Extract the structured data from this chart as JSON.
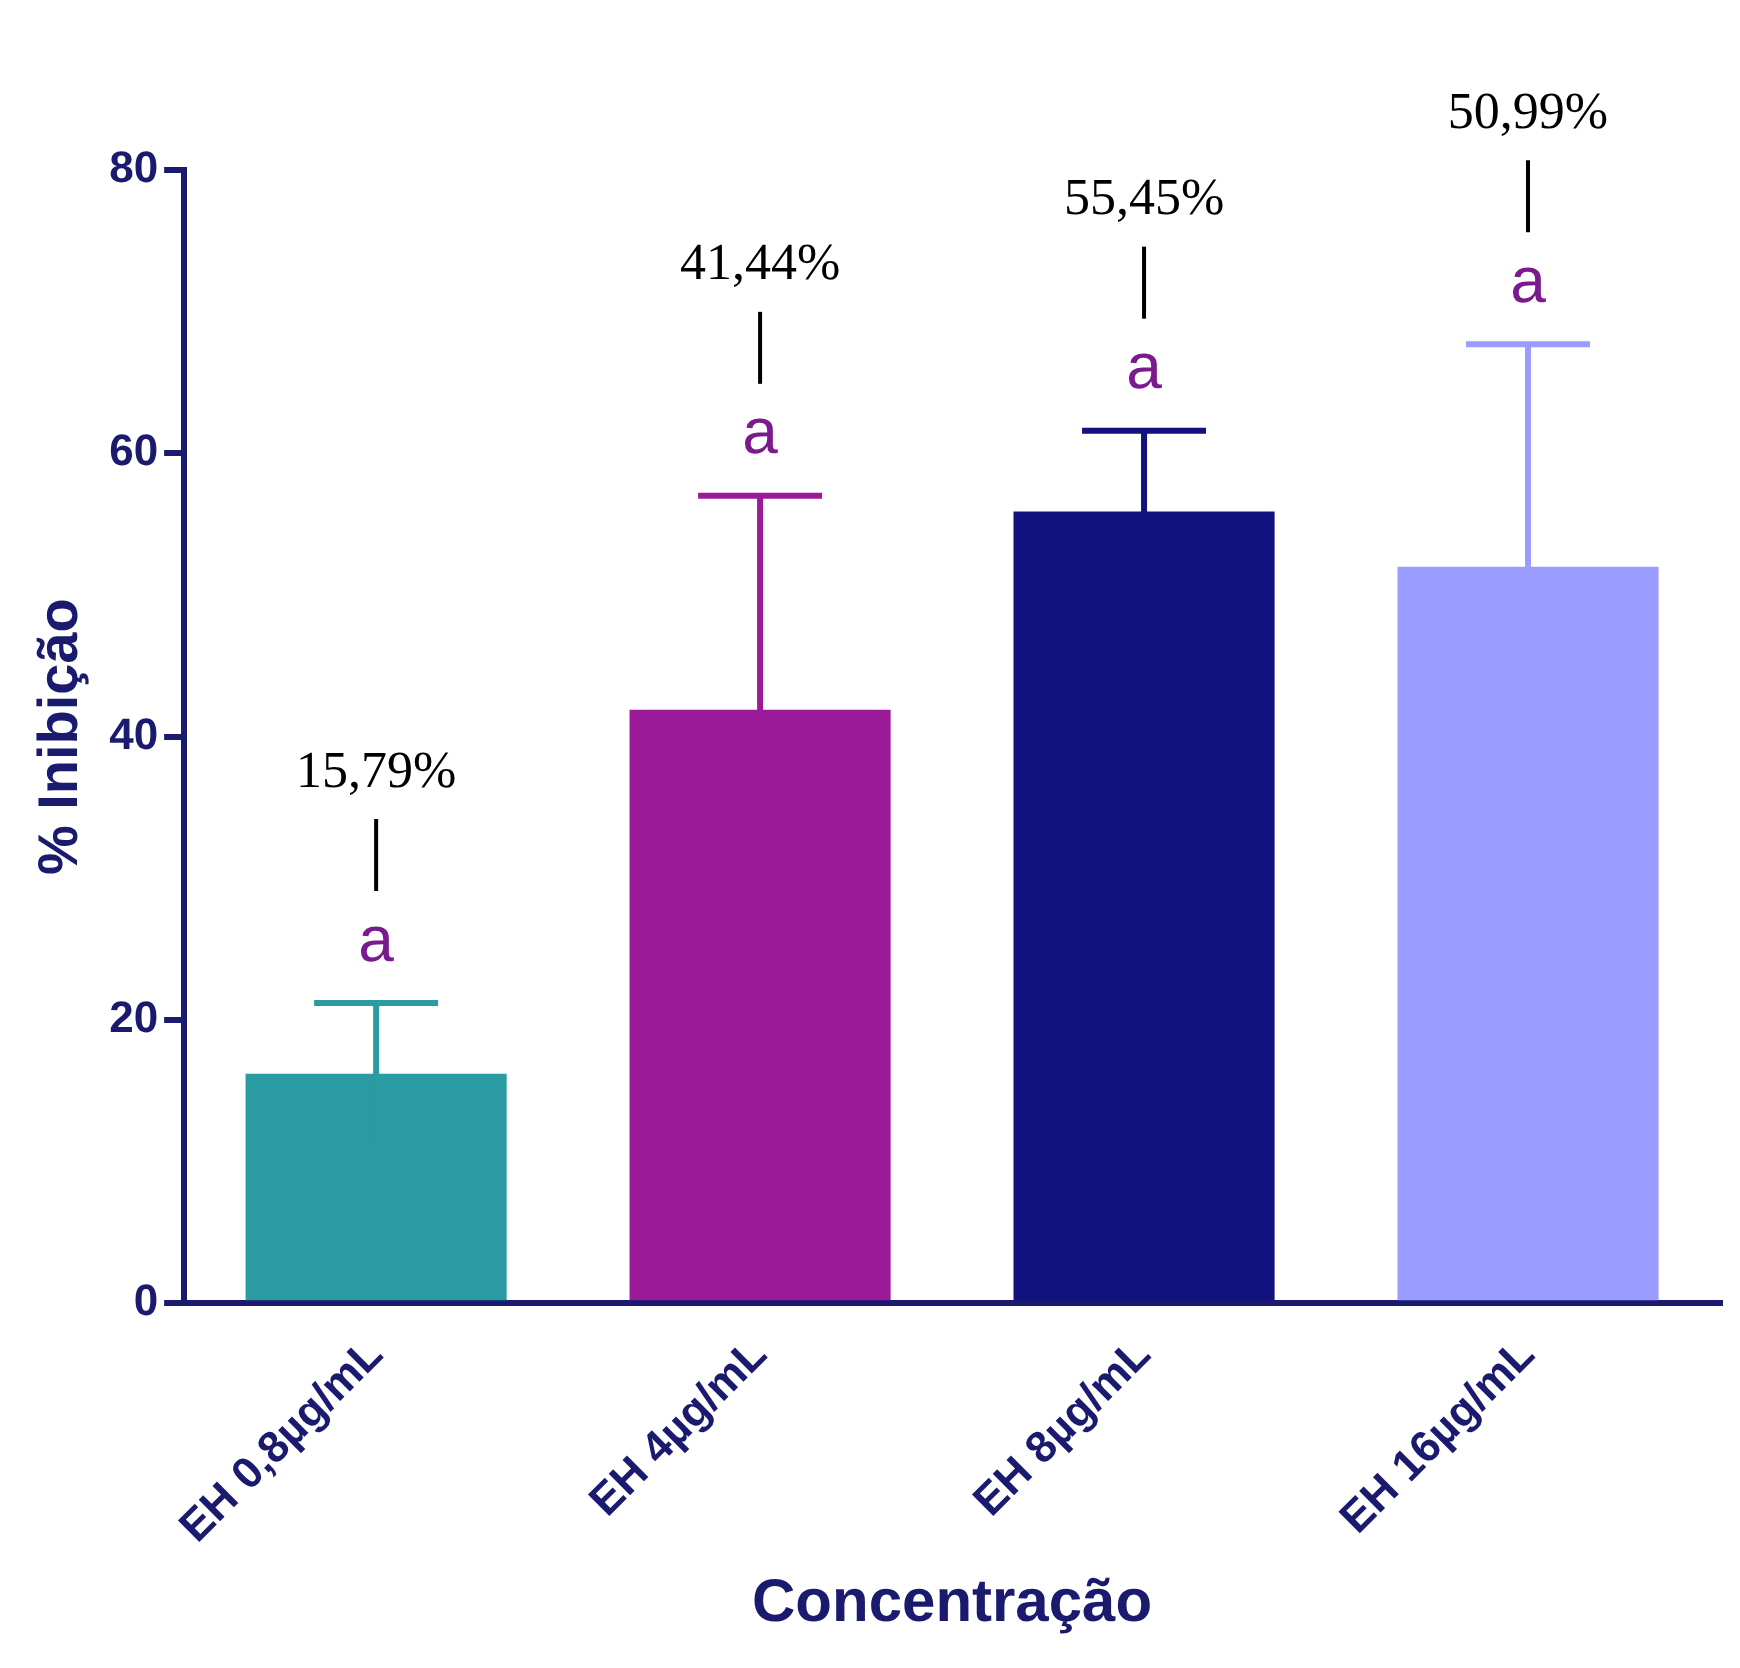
{
  "chart_data": {
    "type": "bar",
    "xlabel": "Concentração",
    "ylabel": "% Inibição",
    "categories": [
      "EH 0,8µg/mL",
      "EH 4µg/mL",
      "EH 8µg/mL",
      "EH 16µg/mL"
    ],
    "values": [
      16.2,
      41.9,
      55.9,
      52
    ],
    "colors": [
      "#2a9ba3",
      "#9a1a9a",
      "#12127e",
      "#9a9cff"
    ],
    "errors": [
      5,
      15.1,
      5.7,
      15.7
    ],
    "ylim": [
      0,
      80
    ],
    "yticks": [
      0,
      20,
      40,
      60,
      80
    ],
    "grid": false,
    "legend": false,
    "annotations": [
      "15,79%",
      "a",
      "41,44%",
      "a",
      "55,45%",
      "a",
      "50,99%",
      "a"
    ]
  }
}
